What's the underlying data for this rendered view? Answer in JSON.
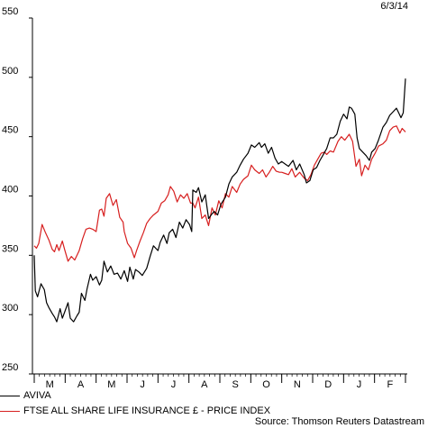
{
  "date_label": "6/3/14",
  "source": "Source: Thomson Reuters Datastream",
  "chart_data": {
    "type": "line",
    "ylim": [
      250,
      550
    ],
    "yticks": [
      250,
      300,
      350,
      400,
      450,
      500,
      550
    ],
    "x_months": [
      "M",
      "A",
      "M",
      "J",
      "J",
      "A",
      "S",
      "O",
      "N",
      "D",
      "J",
      "F"
    ],
    "grid": false,
    "legend_position": "bottom-left",
    "series": [
      {
        "name": "AVIVA",
        "color": "#000000",
        "values": [
          [
            0,
            350
          ],
          [
            0.05,
            320
          ],
          [
            0.15,
            315
          ],
          [
            0.3,
            326
          ],
          [
            0.45,
            321
          ],
          [
            0.55,
            310
          ],
          [
            0.65,
            306
          ],
          [
            0.8,
            301
          ],
          [
            0.9,
            298
          ],
          [
            1.0,
            294
          ],
          [
            1.15,
            305
          ],
          [
            1.25,
            297
          ],
          [
            1.35,
            302
          ],
          [
            1.5,
            310
          ],
          [
            1.6,
            297
          ],
          [
            1.75,
            294
          ],
          [
            1.9,
            299
          ],
          [
            2.0,
            302
          ],
          [
            2.1,
            318
          ],
          [
            2.25,
            312
          ],
          [
            2.35,
            322
          ],
          [
            2.5,
            334
          ],
          [
            2.6,
            329
          ],
          [
            2.75,
            332
          ],
          [
            2.9,
            325
          ],
          [
            3.0,
            329
          ],
          [
            3.1,
            345
          ],
          [
            3.25,
            336
          ],
          [
            3.4,
            341
          ],
          [
            3.55,
            334
          ],
          [
            3.7,
            335
          ],
          [
            3.85,
            330
          ],
          [
            4.0,
            337
          ],
          [
            4.15,
            328
          ],
          [
            4.25,
            340
          ],
          [
            4.4,
            330
          ],
          [
            4.5,
            338
          ],
          [
            4.65,
            336
          ],
          [
            4.8,
            333
          ],
          [
            5.0,
            339
          ],
          [
            5.15,
            349
          ],
          [
            5.3,
            358
          ],
          [
            5.5,
            354
          ],
          [
            5.6,
            361
          ],
          [
            5.75,
            367
          ],
          [
            5.9,
            360
          ],
          [
            6.0,
            369
          ],
          [
            6.15,
            372
          ],
          [
            6.3,
            365
          ],
          [
            6.45,
            378
          ],
          [
            6.6,
            373
          ],
          [
            6.75,
            380
          ],
          [
            6.9,
            376
          ],
          [
            7.0,
            370
          ],
          [
            7.05,
            405
          ],
          [
            7.2,
            403
          ],
          [
            7.3,
            407
          ],
          [
            7.45,
            395
          ],
          [
            7.6,
            401
          ],
          [
            7.75,
            381
          ],
          [
            7.9,
            385
          ],
          [
            8.0,
            387
          ],
          [
            8.15,
            384
          ],
          [
            8.3,
            393
          ],
          [
            8.5,
            399
          ],
          [
            8.65,
            410
          ],
          [
            8.8,
            416
          ],
          [
            9.0,
            420
          ],
          [
            9.15,
            426
          ],
          [
            9.3,
            431
          ],
          [
            9.5,
            436
          ],
          [
            9.65,
            443
          ],
          [
            9.8,
            441
          ],
          [
            10.0,
            445
          ],
          [
            10.1,
            441
          ],
          [
            10.25,
            444
          ],
          [
            10.4,
            436
          ],
          [
            10.55,
            441
          ],
          [
            10.7,
            432
          ],
          [
            10.85,
            427
          ],
          [
            11.0,
            429
          ],
          [
            11.15,
            427
          ],
          [
            11.3,
            425
          ],
          [
            11.5,
            430
          ],
          [
            11.65,
            422
          ],
          [
            11.8,
            427
          ],
          [
            12.0,
            418
          ],
          [
            12.1,
            411
          ],
          [
            12.25,
            413
          ],
          [
            12.4,
            422
          ],
          [
            12.55,
            424
          ],
          [
            12.7,
            430
          ],
          [
            12.85,
            435
          ],
          [
            13.0,
            440
          ],
          [
            13.15,
            449
          ],
          [
            13.3,
            449
          ],
          [
            13.45,
            452
          ],
          [
            13.6,
            463
          ],
          [
            13.75,
            469
          ],
          [
            13.9,
            465
          ],
          [
            14.0,
            475
          ],
          [
            14.1,
            474
          ],
          [
            14.25,
            469
          ],
          [
            14.35,
            449
          ],
          [
            14.45,
            440
          ],
          [
            14.6,
            437
          ],
          [
            14.75,
            434
          ],
          [
            14.9,
            430
          ],
          [
            15.0,
            437
          ],
          [
            15.15,
            440
          ],
          [
            15.3,
            447
          ],
          [
            15.5,
            458
          ],
          [
            15.65,
            462
          ],
          [
            15.8,
            468
          ],
          [
            15.95,
            471
          ],
          [
            16.1,
            474
          ],
          [
            16.2,
            470
          ],
          [
            16.3,
            466
          ],
          [
            16.4,
            470
          ],
          [
            16.5,
            499
          ]
        ]
      },
      {
        "name": "FTSE ALL SHARE LIFE INSURANCE £ - PRICE INDEX",
        "color": "#d71f1f",
        "values": [
          [
            0,
            358
          ],
          [
            0.1,
            356
          ],
          [
            0.2,
            360
          ],
          [
            0.35,
            376
          ],
          [
            0.5,
            369
          ],
          [
            0.65,
            363
          ],
          [
            0.8,
            355
          ],
          [
            0.9,
            353
          ],
          [
            1.0,
            359
          ],
          [
            1.1,
            354
          ],
          [
            1.25,
            362
          ],
          [
            1.35,
            355
          ],
          [
            1.5,
            345
          ],
          [
            1.65,
            349
          ],
          [
            1.8,
            346
          ],
          [
            2.0,
            354
          ],
          [
            2.15,
            364
          ],
          [
            2.3,
            372
          ],
          [
            2.45,
            373
          ],
          [
            2.6,
            372
          ],
          [
            2.75,
            370
          ],
          [
            2.9,
            388
          ],
          [
            3.0,
            389
          ],
          [
            3.1,
            383
          ],
          [
            3.2,
            398
          ],
          [
            3.35,
            402
          ],
          [
            3.5,
            392
          ],
          [
            3.65,
            397
          ],
          [
            3.8,
            382
          ],
          [
            3.95,
            378
          ],
          [
            4.0,
            370
          ],
          [
            4.15,
            360
          ],
          [
            4.3,
            356
          ],
          [
            4.45,
            348
          ],
          [
            4.55,
            354
          ],
          [
            4.7,
            362
          ],
          [
            4.85,
            369
          ],
          [
            5.0,
            377
          ],
          [
            5.15,
            381
          ],
          [
            5.3,
            384
          ],
          [
            5.5,
            387
          ],
          [
            5.65,
            394
          ],
          [
            5.8,
            396
          ],
          [
            5.95,
            401
          ],
          [
            6.05,
            408
          ],
          [
            6.2,
            404
          ],
          [
            6.35,
            395
          ],
          [
            6.5,
            401
          ],
          [
            6.65,
            398
          ],
          [
            6.8,
            402
          ],
          [
            6.95,
            394
          ],
          [
            7.05,
            394
          ],
          [
            7.15,
            390
          ],
          [
            7.3,
            399
          ],
          [
            7.45,
            381
          ],
          [
            7.6,
            384
          ],
          [
            7.75,
            375
          ],
          [
            7.9,
            390
          ],
          [
            8.05,
            384
          ],
          [
            8.2,
            396
          ],
          [
            8.35,
            390
          ],
          [
            8.5,
            402
          ],
          [
            8.65,
            399
          ],
          [
            8.8,
            408
          ],
          [
            9.0,
            403
          ],
          [
            9.15,
            410
          ],
          [
            9.3,
            414
          ],
          [
            9.5,
            417
          ],
          [
            9.65,
            426
          ],
          [
            9.8,
            422
          ],
          [
            10.0,
            419
          ],
          [
            10.15,
            422
          ],
          [
            10.3,
            416
          ],
          [
            10.45,
            420
          ],
          [
            10.6,
            425
          ],
          [
            10.75,
            421
          ],
          [
            10.9,
            420
          ],
          [
            11.0,
            420
          ],
          [
            11.15,
            419
          ],
          [
            11.3,
            418
          ],
          [
            11.45,
            423
          ],
          [
            11.6,
            416
          ],
          [
            11.8,
            420
          ],
          [
            12.0,
            415
          ],
          [
            12.15,
            413
          ],
          [
            12.3,
            418
          ],
          [
            12.45,
            426
          ],
          [
            12.6,
            431
          ],
          [
            12.75,
            436
          ],
          [
            12.9,
            437
          ],
          [
            13.0,
            435
          ],
          [
            13.15,
            438
          ],
          [
            13.3,
            437
          ],
          [
            13.5,
            446
          ],
          [
            13.65,
            450
          ],
          [
            13.8,
            447
          ],
          [
            14.0,
            452
          ],
          [
            14.15,
            446
          ],
          [
            14.3,
            425
          ],
          [
            14.45,
            431
          ],
          [
            14.55,
            417
          ],
          [
            14.7,
            426
          ],
          [
            14.85,
            422
          ],
          [
            15.0,
            431
          ],
          [
            15.15,
            436
          ],
          [
            15.3,
            442
          ],
          [
            15.5,
            444
          ],
          [
            15.65,
            447
          ],
          [
            15.8,
            455
          ],
          [
            15.95,
            458
          ],
          [
            16.1,
            459
          ],
          [
            16.25,
            453
          ],
          [
            16.35,
            457
          ],
          [
            16.5,
            454
          ]
        ]
      }
    ]
  }
}
